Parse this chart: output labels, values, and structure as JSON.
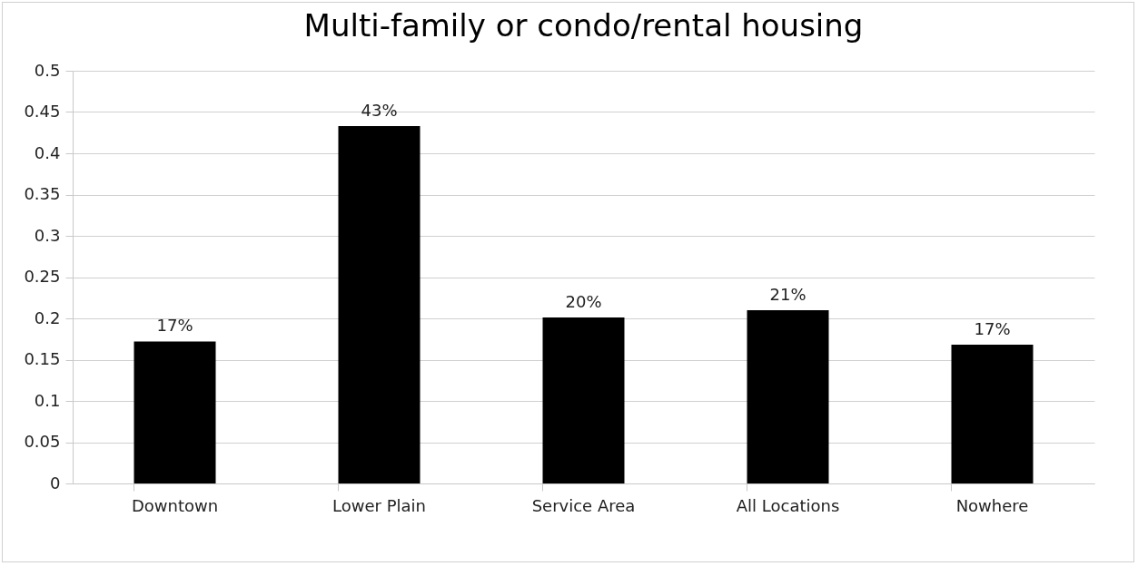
{
  "chart_data": {
    "type": "bar",
    "title": "Multi-family or condo/rental housing",
    "categories": [
      "Downtown",
      "Lower Plain",
      "Service Area",
      "All Locations",
      "Nowhere"
    ],
    "values": [
      0.172,
      0.433,
      0.201,
      0.21,
      0.168
    ],
    "value_labels": [
      "17%",
      "43%",
      "20%",
      "21%",
      "17%"
    ],
    "color": "#000000",
    "ylim": [
      0,
      0.5
    ],
    "yticks": [
      0,
      0.05,
      0.1,
      0.15,
      0.2,
      0.25,
      0.3,
      0.35,
      0.4,
      0.45,
      0.5
    ],
    "grid": true
  }
}
